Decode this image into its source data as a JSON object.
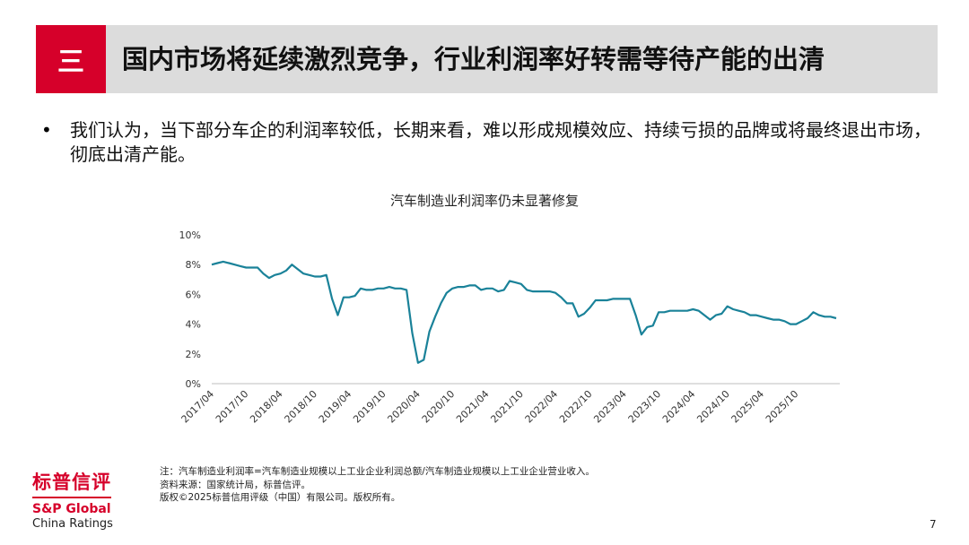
{
  "header": {
    "section": "三",
    "title": "国内市场将延续激烈竞争，行业利润率好转需等待产能的出清"
  },
  "bullet": {
    "text": "我们认为，当下部分车企的利润率较低，长期来看，难以形成规模效应、持续亏损的品牌或将最终退出市场，彻底出清产能。"
  },
  "chart_data": {
    "type": "line",
    "title": "汽车制造业利润率仍未显著修复",
    "series_color": "#1a8299",
    "ylim": [
      0,
      10
    ],
    "y_ticks": [
      "0%",
      "2%",
      "4%",
      "6%",
      "8%",
      "10%"
    ],
    "x_tick_labels": [
      "2017/04",
      "2017/10",
      "2018/04",
      "2018/10",
      "2019/04",
      "2019/10",
      "2020/04",
      "2020/10",
      "2021/04",
      "2021/10",
      "2022/04",
      "2022/10",
      "2023/04",
      "2023/10",
      "2024/04",
      "2024/10",
      "2025/04",
      "2025/10"
    ],
    "x_start": "2017/04",
    "values": [
      8.0,
      8.1,
      8.2,
      8.1,
      8.0,
      7.9,
      7.8,
      7.8,
      7.8,
      7.4,
      7.1,
      7.3,
      7.4,
      7.6,
      8.0,
      7.7,
      7.4,
      7.3,
      7.2,
      7.2,
      7.3,
      5.7,
      4.6,
      5.8,
      5.8,
      5.9,
      6.4,
      6.3,
      6.3,
      6.4,
      6.4,
      6.5,
      6.4,
      6.4,
      6.3,
      3.4,
      1.4,
      1.6,
      3.5,
      4.5,
      5.4,
      6.1,
      6.4,
      6.5,
      6.5,
      6.6,
      6.6,
      6.3,
      6.4,
      6.4,
      6.2,
      6.3,
      6.9,
      6.8,
      6.7,
      6.3,
      6.2,
      6.2,
      6.2,
      6.2,
      6.1,
      5.8,
      5.4,
      5.4,
      4.5,
      4.7,
      5.1,
      5.6,
      5.6,
      5.6,
      5.7,
      5.7,
      5.7,
      5.7,
      4.6,
      3.3,
      3.8,
      3.9,
      4.8,
      4.8,
      4.9,
      4.9,
      4.9,
      4.9,
      5.0,
      4.9,
      4.6,
      4.3,
      4.6,
      4.7,
      5.2,
      5.0,
      4.9,
      4.8,
      4.6,
      4.6,
      4.5,
      4.4,
      4.3,
      4.3,
      4.2,
      4.0,
      4.0,
      4.2,
      4.4,
      4.8,
      4.6,
      4.5,
      4.5,
      4.4
    ]
  },
  "footnote": {
    "line1": "注：汽车制造业利润率=汽车制造业规模以上工业企业利润总额/汽车制造业规模以上工业企业营业收入。",
    "line2": "资料来源：国家统计局，标普信评。",
    "line3": "版权©2025标普信用评级（中国）有限公司。版权所有。"
  },
  "logo": {
    "cn": "标普信评",
    "en": "S&P Global",
    "sub": "China Ratings"
  },
  "page_number": "7"
}
